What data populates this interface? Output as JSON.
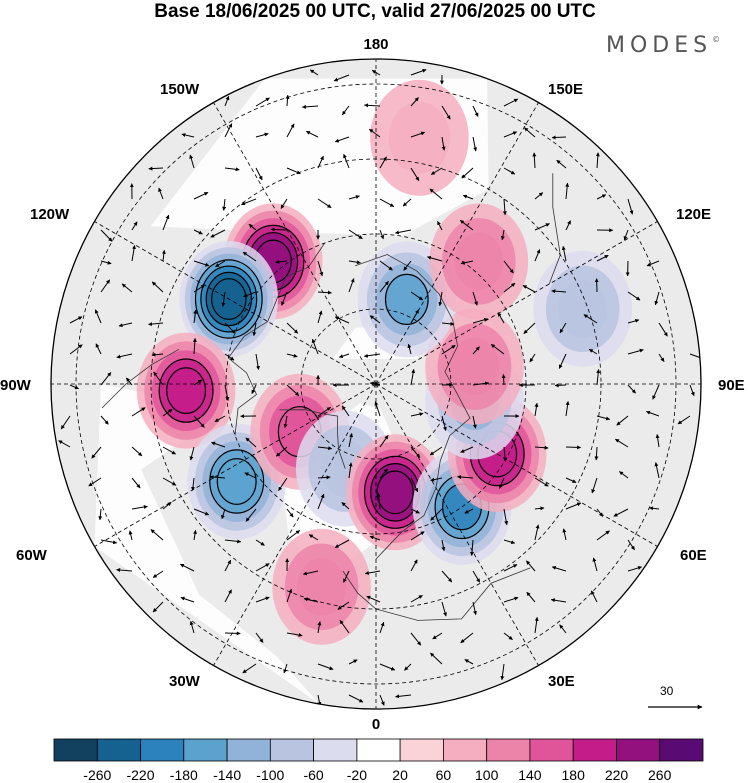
{
  "title": "Base 18/06/2025 00 UTC, valid 27/06/2025 00 UTC",
  "logo": "MODES",
  "logo_mark": "©",
  "longitude_labels": [
    {
      "name": "lon-180",
      "text": "180"
    },
    {
      "name": "lon-150w",
      "text": "150W"
    },
    {
      "name": "lon-150e",
      "text": "150E"
    },
    {
      "name": "lon-120w",
      "text": "120W"
    },
    {
      "name": "lon-120e",
      "text": "120E"
    },
    {
      "name": "lon-90w",
      "text": "90W"
    },
    {
      "name": "lon-90e",
      "text": "90E"
    },
    {
      "name": "lon-60w",
      "text": "60W"
    },
    {
      "name": "lon-60e",
      "text": "60E"
    },
    {
      "name": "lon-30w",
      "text": "30W"
    },
    {
      "name": "lon-30e",
      "text": "30E"
    },
    {
      "name": "lon-0",
      "text": "0"
    }
  ],
  "reference_vector": "30",
  "colorbar": {
    "colors": [
      "#12405f",
      "#15618f",
      "#2b82bc",
      "#5ba2cf",
      "#92b3d8",
      "#b8c4e0",
      "#dcdcef",
      "#ffffff",
      "#f9d3d8",
      "#f4aec0",
      "#ec84a9",
      "#e0549a",
      "#c41d8a",
      "#93117f",
      "#5a0a73"
    ],
    "tick_labels": [
      "-260",
      "-220",
      "-180",
      "-140",
      "-100",
      "-60",
      "-20",
      "20",
      "60",
      "100",
      "140",
      "180",
      "220",
      "260"
    ]
  },
  "colors": {
    "land_grey": "#ebebeb",
    "ocean_white": "#ffffff",
    "coast": "#333333",
    "grid": "#000000"
  },
  "anomaly_centers": [
    {
      "lon": -140,
      "colat": 32,
      "value": 220,
      "label": "positive-center-aleutian"
    },
    {
      "lon": -120,
      "colat": 34,
      "value": -250,
      "label": "negative-center-alaska"
    },
    {
      "lon": -88,
      "colat": 38,
      "value": 200,
      "label": "positive-center-hudson"
    },
    {
      "lon": -55,
      "colat": 34,
      "value": -180,
      "label": "negative-center-atlantic"
    },
    {
      "lon": -58,
      "colat": 18,
      "value": 140,
      "label": "positive-center-baffin"
    },
    {
      "lon": -20,
      "colat": 18,
      "value": -100,
      "label": "negative-center-greenland-sea"
    },
    {
      "lon": 10,
      "colat": 22,
      "value": 220,
      "label": "positive-center-scandinavia"
    },
    {
      "lon": 35,
      "colat": 30,
      "value": -200,
      "label": "negative-center-russia"
    },
    {
      "lon": 60,
      "colat": 28,
      "value": 180,
      "label": "positive-center-ural"
    },
    {
      "lon": 80,
      "colat": 20,
      "value": -120,
      "label": "negative-center-kara"
    },
    {
      "lon": 100,
      "colat": 20,
      "value": 100,
      "label": "positive-center-taymyr"
    },
    {
      "lon": 160,
      "colat": 18,
      "value": -160,
      "label": "negative-center-east-siberian"
    },
    {
      "lon": 140,
      "colat": 32,
      "value": 100,
      "label": "positive-center-yakutia"
    },
    {
      "lon": 110,
      "colat": 44,
      "value": -100,
      "label": "negative-center-mongolia"
    },
    {
      "lon": -15,
      "colat": 42,
      "value": 120,
      "label": "positive-center-iberia"
    },
    {
      "lon": 170,
      "colat": 50,
      "value": 80,
      "label": "positive-center-pacific"
    }
  ]
}
